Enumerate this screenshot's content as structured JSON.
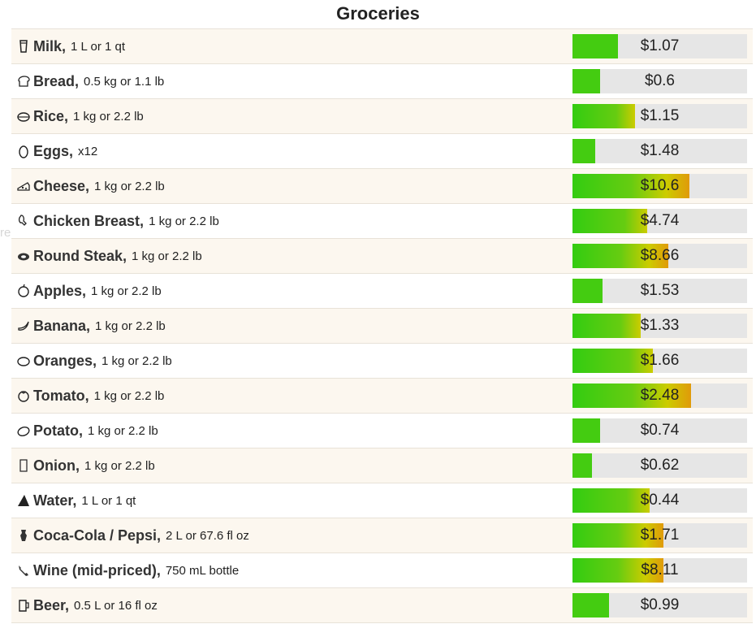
{
  "title": "Groceries",
  "watermark": "reur d'écran",
  "colors": {
    "bar_start": "#33cc11",
    "bar_end": "#e09a0a",
    "bar_track": "#e6e6e6"
  },
  "items": [
    {
      "name": "Milk,",
      "qty": "1 L or 1 qt",
      "price": "$1.07",
      "fill": 0.26,
      "icon": "milk-icon"
    },
    {
      "name": "Bread,",
      "qty": "0.5 kg or 1.1 lb",
      "price": "$0.6",
      "fill": 0.16,
      "icon": "bread-icon"
    },
    {
      "name": "Rice,",
      "qty": "1 kg or 2.2 lb",
      "price": "$1.15",
      "fill": 0.36,
      "icon": "rice-icon"
    },
    {
      "name": "Eggs,",
      "qty": "x12",
      "price": "$1.48",
      "fill": 0.13,
      "icon": "egg-icon"
    },
    {
      "name": "Cheese,",
      "qty": "1 kg or 2.2 lb",
      "price": "$10.6",
      "fill": 0.67,
      "icon": "cheese-icon"
    },
    {
      "name": "Chicken Breast,",
      "qty": "1 kg or 2.2 lb",
      "price": "$4.74",
      "fill": 0.43,
      "icon": "chicken-icon"
    },
    {
      "name": "Round Steak,",
      "qty": "1 kg or 2.2 lb",
      "price": "$8.66",
      "fill": 0.55,
      "icon": "steak-icon"
    },
    {
      "name": "Apples,",
      "qty": "1 kg or 2.2 lb",
      "price": "$1.53",
      "fill": 0.17,
      "icon": "apple-icon"
    },
    {
      "name": "Banana,",
      "qty": "1 kg or 2.2 lb",
      "price": "$1.33",
      "fill": 0.39,
      "icon": "banana-icon"
    },
    {
      "name": "Oranges,",
      "qty": "1 kg or 2.2 lb",
      "price": "$1.66",
      "fill": 0.46,
      "icon": "orange-icon"
    },
    {
      "name": "Tomato,",
      "qty": "1 kg or 2.2 lb",
      "price": "$2.48",
      "fill": 0.68,
      "icon": "tomato-icon"
    },
    {
      "name": "Potato,",
      "qty": "1 kg or 2.2 lb",
      "price": "$0.74",
      "fill": 0.16,
      "icon": "potato-icon"
    },
    {
      "name": "Onion,",
      "qty": "1 kg or 2.2 lb",
      "price": "$0.62",
      "fill": 0.11,
      "icon": "onion-icon"
    },
    {
      "name": "Water,",
      "qty": "1 L or 1 qt",
      "price": "$0.44",
      "fill": 0.44,
      "icon": "water-icon"
    },
    {
      "name": "Coca-Cola / Pepsi,",
      "qty": "2 L or 67.6 fl oz",
      "price": "$1.71",
      "fill": 0.52,
      "icon": "soda-icon"
    },
    {
      "name": "Wine (mid-priced),",
      "qty": "750 mL bottle",
      "price": "$8.11",
      "fill": 0.52,
      "icon": "wine-icon"
    },
    {
      "name": "Beer,",
      "qty": "0.5 L or 16 fl oz",
      "price": "$0.99",
      "fill": 0.21,
      "icon": "beer-icon"
    }
  ]
}
